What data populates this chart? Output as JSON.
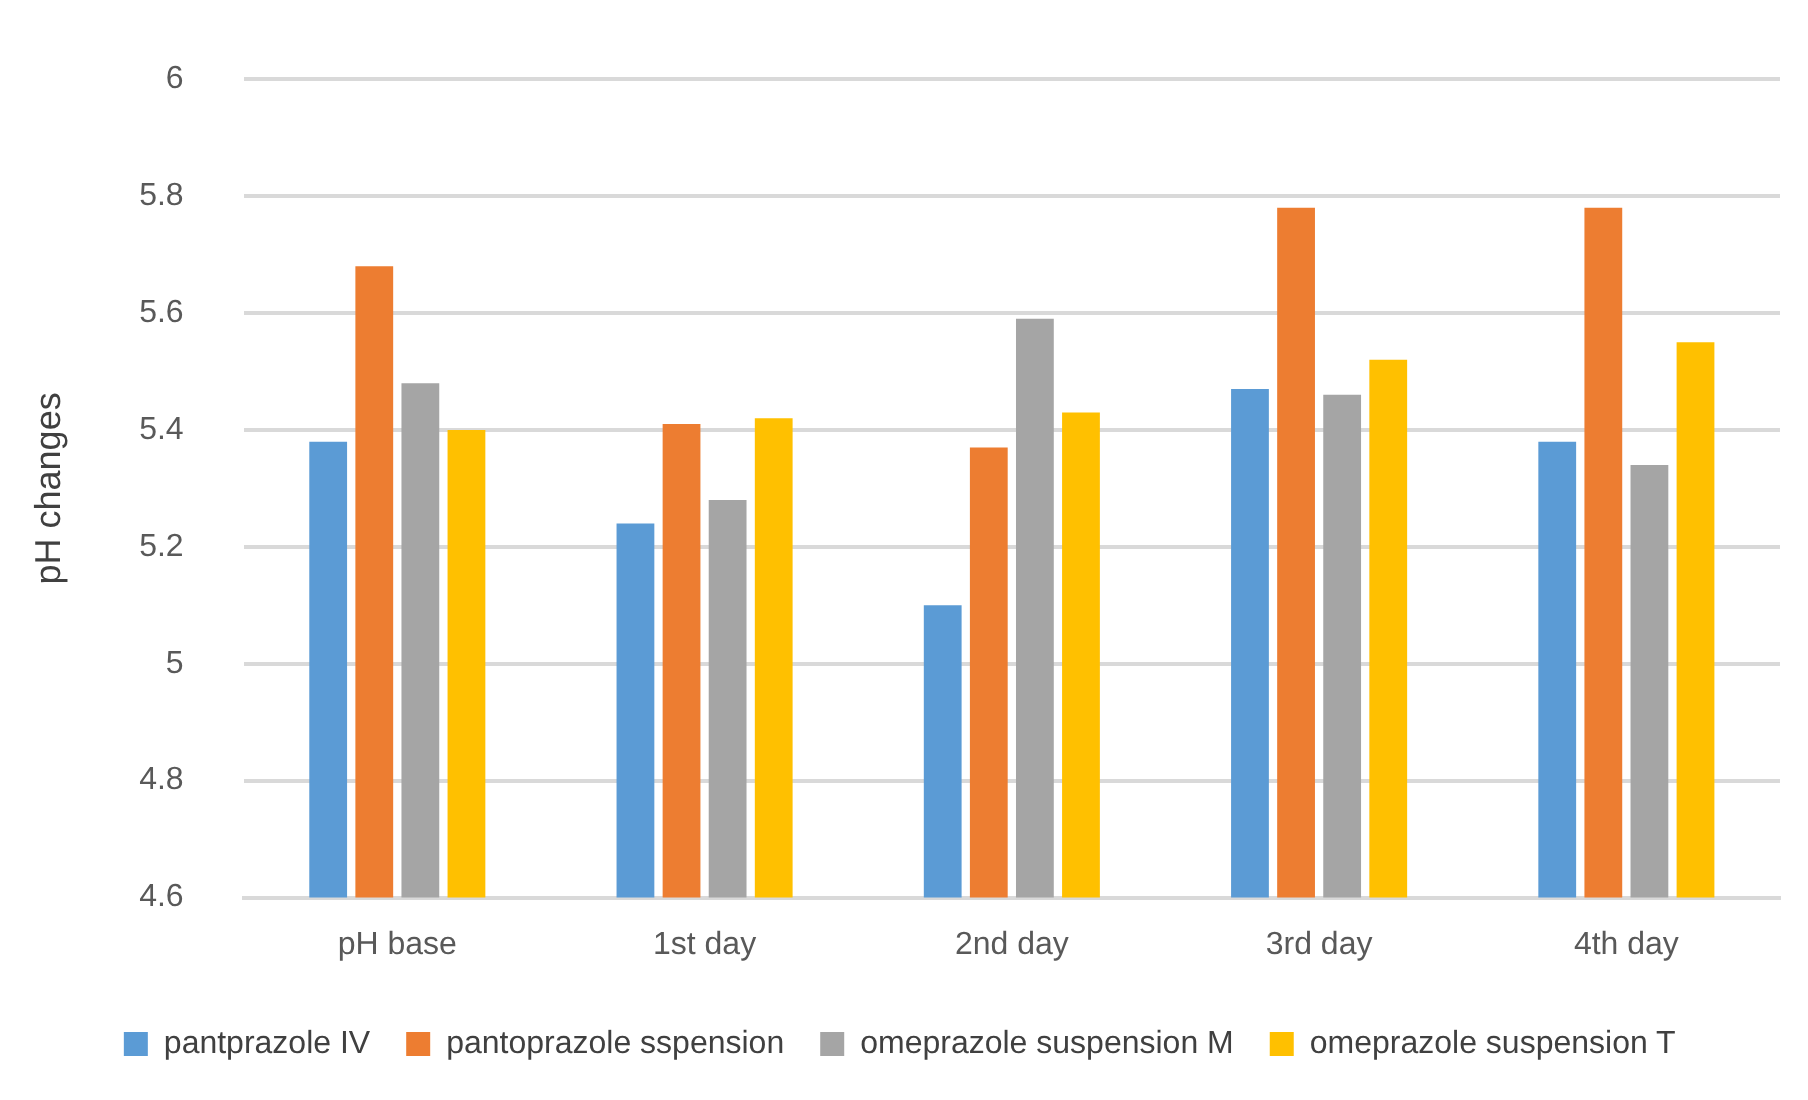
{
  "chart_data": {
    "type": "bar",
    "ylabel": "pH changes",
    "categories": [
      "pH base",
      "1st day",
      "2nd day",
      "3rd day",
      "4th day"
    ],
    "series": [
      {
        "name": "pantprazole IV",
        "color": "#5b9bd5",
        "values": [
          5.38,
          5.24,
          5.1,
          5.47,
          5.38
        ]
      },
      {
        "name": "pantoprazole sspension",
        "color": "#ed7d31",
        "values": [
          5.68,
          5.41,
          5.37,
          5.78,
          5.78
        ]
      },
      {
        "name": "omeprazole suspension M",
        "color": "#a5a5a5",
        "values": [
          5.48,
          5.28,
          5.59,
          5.46,
          5.34
        ]
      },
      {
        "name": "omeprazole suspension T",
        "color": "#ffc000",
        "values": [
          5.4,
          5.42,
          5.43,
          5.52,
          5.55
        ]
      }
    ],
    "ylim": [
      4.6,
      6
    ],
    "yticks": [
      4.6,
      4.8,
      5,
      5.2,
      5.4,
      5.6,
      5.8,
      6
    ],
    "grid": "y",
    "legend": "bottom"
  }
}
